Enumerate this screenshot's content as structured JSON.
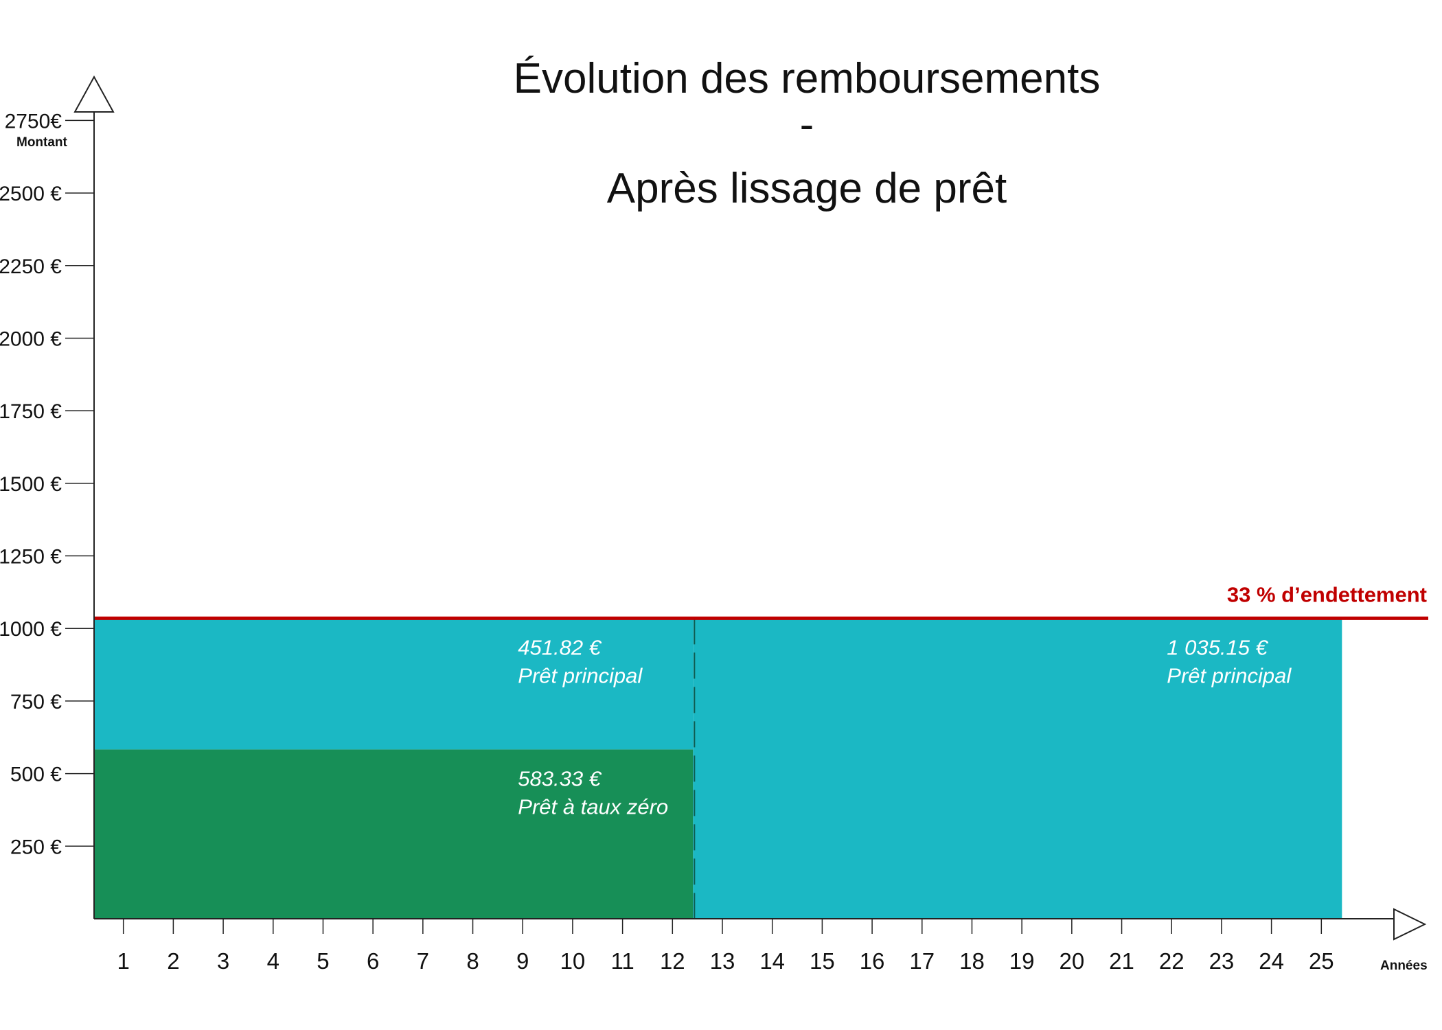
{
  "chart_data": {
    "type": "bar",
    "title_lines": [
      "Évolution des remboursements",
      "-",
      "Après lissage de prêt"
    ],
    "ylabel": "Montant",
    "xlabel": "Années",
    "x_ticks": [
      "1",
      "2",
      "3",
      "4",
      "5",
      "6",
      "7",
      "8",
      "9",
      "10",
      "11",
      "12",
      "13",
      "14",
      "15",
      "16",
      "17",
      "18",
      "19",
      "20",
      "21",
      "22",
      "23",
      "24",
      "25"
    ],
    "y_ticks": [
      {
        "value": 250,
        "label": "250 €"
      },
      {
        "value": 500,
        "label": "500 €"
      },
      {
        "value": 750,
        "label": "750 €"
      },
      {
        "value": 1000,
        "label": "1000 €"
      },
      {
        "value": 1250,
        "label": "1250 €"
      },
      {
        "value": 1500,
        "label": "1500 €"
      },
      {
        "value": 1750,
        "label": "1750 €"
      },
      {
        "value": 2000,
        "label": "2000 €"
      },
      {
        "value": 2250,
        "label": "2250 €"
      },
      {
        "value": 2500,
        "label": "2500 €"
      },
      {
        "value": 2750,
        "label": "2750€"
      }
    ],
    "ylim": [
      0,
      2900
    ],
    "xlim": [
      0,
      26
    ],
    "segments": [
      {
        "name": "Prêt à taux zéro",
        "value_label": "583.33 €",
        "x_start": 0,
        "x_end": 12,
        "y_start": 0,
        "y_end": 583.33,
        "color": "#178f57"
      },
      {
        "name": "Prêt principal",
        "value_label": "451.82 €",
        "x_start": 0,
        "x_end": 12,
        "y_start": 583.33,
        "y_end": 1035.15,
        "color": "#1bb8c4"
      },
      {
        "name": "Prêt principal",
        "value_label": "1 035.15 €",
        "x_start": 12,
        "x_end": 25,
        "y_start": 0,
        "y_end": 1035.15,
        "color": "#1bb8c4"
      }
    ],
    "threshold": {
      "label": "33 % d’endettement",
      "value": 1035.15,
      "color": "#c00000"
    },
    "grid": false,
    "legend": "none"
  }
}
